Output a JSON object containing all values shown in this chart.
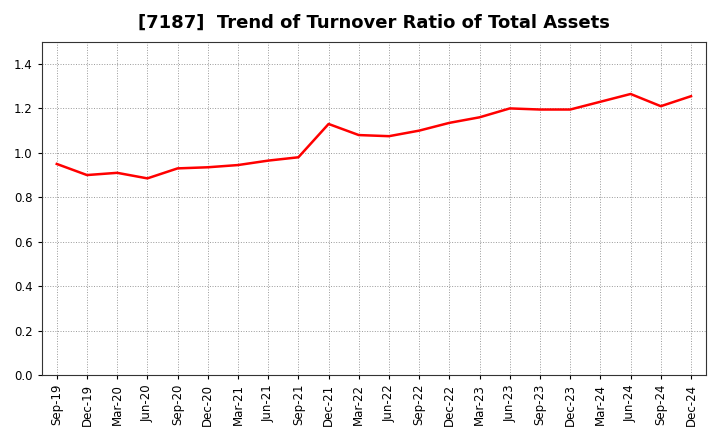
{
  "title": "[7187]  Trend of Turnover Ratio of Total Assets",
  "x_labels": [
    "Sep-19",
    "Dec-19",
    "Mar-20",
    "Jun-20",
    "Sep-20",
    "Dec-20",
    "Mar-21",
    "Jun-21",
    "Sep-21",
    "Dec-21",
    "Mar-22",
    "Jun-22",
    "Sep-22",
    "Dec-22",
    "Mar-23",
    "Jun-23",
    "Sep-23",
    "Dec-23",
    "Mar-24",
    "Jun-24",
    "Sep-24",
    "Dec-24"
  ],
  "y_values": [
    0.95,
    0.9,
    0.91,
    0.885,
    0.93,
    0.935,
    0.945,
    0.965,
    0.98,
    1.13,
    1.08,
    1.075,
    1.1,
    1.135,
    1.16,
    1.2,
    1.195,
    1.195,
    1.23,
    1.265,
    1.21,
    1.255
  ],
  "line_color": "#ff0000",
  "line_width": 1.8,
  "ylim": [
    0.0,
    1.5
  ],
  "yticks": [
    0.0,
    0.2,
    0.4,
    0.6,
    0.8,
    1.0,
    1.2,
    1.4
  ],
  "background_color": "#ffffff",
  "plot_bg_color": "#ffffff",
  "grid_color": "#999999",
  "title_fontsize": 13,
  "tick_fontsize": 8.5
}
